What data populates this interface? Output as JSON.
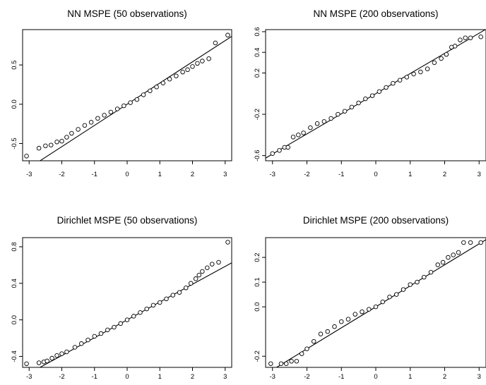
{
  "chart_data": [
    {
      "type": "scatter",
      "title": "NN MSPE (50 observations)",
      "xlabel": "",
      "ylabel": "",
      "xlim": [
        -3.2,
        3.2
      ],
      "ylim": [
        -0.72,
        0.95
      ],
      "x_ticks": [
        -3,
        -2,
        -1,
        0,
        1,
        2,
        3
      ],
      "x_tick_labels": [
        "-3",
        "-2",
        "-1",
        "0",
        "1",
        "2",
        "3"
      ],
      "y_ticks": [
        -0.5,
        0.0,
        0.5
      ],
      "y_tick_labels": [
        "-0.5",
        "0.0",
        "0.5"
      ],
      "reference_line": {
        "intercept": 0.0,
        "slope": 0.27
      },
      "series": [
        {
          "values_desc": "qq points",
          "points": [
            [
              -3.08,
              -0.66
            ],
            [
              -2.7,
              -0.56
            ],
            [
              -2.5,
              -0.53
            ],
            [
              -2.33,
              -0.52
            ],
            [
              -2.15,
              -0.48
            ],
            [
              -2.0,
              -0.47
            ],
            [
              -1.85,
              -0.42
            ],
            [
              -1.7,
              -0.37
            ],
            [
              -1.5,
              -0.32
            ],
            [
              -1.3,
              -0.27
            ],
            [
              -1.1,
              -0.23
            ],
            [
              -0.9,
              -0.18
            ],
            [
              -0.7,
              -0.14
            ],
            [
              -0.5,
              -0.1
            ],
            [
              -0.3,
              -0.06
            ],
            [
              -0.1,
              -0.02
            ],
            [
              0.1,
              0.02
            ],
            [
              0.3,
              0.06
            ],
            [
              0.5,
              0.12
            ],
            [
              0.7,
              0.17
            ],
            [
              0.9,
              0.22
            ],
            [
              1.1,
              0.27
            ],
            [
              1.3,
              0.32
            ],
            [
              1.5,
              0.36
            ],
            [
              1.7,
              0.41
            ],
            [
              1.85,
              0.44
            ],
            [
              2.0,
              0.48
            ],
            [
              2.15,
              0.52
            ],
            [
              2.3,
              0.55
            ],
            [
              2.5,
              0.58
            ],
            [
              2.7,
              0.78
            ],
            [
              3.08,
              0.88
            ]
          ]
        }
      ]
    },
    {
      "type": "scatter",
      "title": "NN MSPE (200 observations)",
      "xlabel": "",
      "ylabel": "",
      "xlim": [
        -3.2,
        3.2
      ],
      "ylim": [
        -0.65,
        0.62
      ],
      "x_ticks": [
        -3,
        -2,
        -1,
        0,
        1,
        2,
        3
      ],
      "x_tick_labels": [
        "-3",
        "-2",
        "-1",
        "0",
        "1",
        "2",
        "3"
      ],
      "y_ticks": [
        -0.6,
        -0.2,
        0.2,
        0.4,
        0.6
      ],
      "y_tick_labels": [
        "-0.6",
        "-0.2",
        "0.2",
        "0.4",
        "0.6"
      ],
      "reference_line": {
        "intercept": 0.0,
        "slope": 0.195
      },
      "series": [
        {
          "values_desc": "qq points",
          "points": [
            [
              -3.0,
              -0.58
            ],
            [
              -2.8,
              -0.55
            ],
            [
              -2.65,
              -0.52
            ],
            [
              -2.55,
              -0.52
            ],
            [
              -2.4,
              -0.42
            ],
            [
              -2.25,
              -0.4
            ],
            [
              -2.1,
              -0.38
            ],
            [
              -1.9,
              -0.33
            ],
            [
              -1.7,
              -0.29
            ],
            [
              -1.5,
              -0.27
            ],
            [
              -1.3,
              -0.24
            ],
            [
              -1.1,
              -0.2
            ],
            [
              -0.9,
              -0.17
            ],
            [
              -0.7,
              -0.13
            ],
            [
              -0.5,
              -0.09
            ],
            [
              -0.3,
              -0.05
            ],
            [
              -0.1,
              -0.02
            ],
            [
              0.1,
              0.02
            ],
            [
              0.3,
              0.06
            ],
            [
              0.5,
              0.1
            ],
            [
              0.7,
              0.13
            ],
            [
              0.9,
              0.16
            ],
            [
              1.1,
              0.19
            ],
            [
              1.3,
              0.21
            ],
            [
              1.5,
              0.24
            ],
            [
              1.7,
              0.3
            ],
            [
              1.9,
              0.34
            ],
            [
              2.05,
              0.38
            ],
            [
              2.2,
              0.45
            ],
            [
              2.3,
              0.46
            ],
            [
              2.45,
              0.52
            ],
            [
              2.6,
              0.54
            ],
            [
              2.75,
              0.54
            ],
            [
              3.05,
              0.55
            ]
          ]
        }
      ]
    },
    {
      "type": "scatter",
      "title": "Dirichlet MSPE (50 observations)",
      "xlabel": "",
      "ylabel": "",
      "xlim": [
        -3.2,
        3.2
      ],
      "ylim": [
        -0.52,
        0.9
      ],
      "x_ticks": [
        -3,
        -2,
        -1,
        0,
        1,
        2,
        3
      ],
      "x_tick_labels": [
        "-3",
        "-2",
        "-1",
        "0",
        "1",
        "2",
        "3"
      ],
      "y_ticks": [
        -0.4,
        0.0,
        0.4,
        0.8
      ],
      "y_tick_labels": [
        "-0.4",
        "0.0",
        "0.4",
        "0.8"
      ],
      "reference_line": {
        "intercept": 0.0,
        "slope": 0.195
      },
      "series": [
        {
          "values_desc": "qq points",
          "points": [
            [
              -3.08,
              -0.48
            ],
            [
              -2.7,
              -0.47
            ],
            [
              -2.55,
              -0.46
            ],
            [
              -2.45,
              -0.45
            ],
            [
              -2.3,
              -0.42
            ],
            [
              -2.15,
              -0.39
            ],
            [
              -2.0,
              -0.37
            ],
            [
              -1.85,
              -0.35
            ],
            [
              -1.6,
              -0.3
            ],
            [
              -1.4,
              -0.26
            ],
            [
              -1.2,
              -0.22
            ],
            [
              -1.0,
              -0.18
            ],
            [
              -0.8,
              -0.15
            ],
            [
              -0.6,
              -0.11
            ],
            [
              -0.4,
              -0.08
            ],
            [
              -0.2,
              -0.04
            ],
            [
              0.0,
              0.0
            ],
            [
              0.2,
              0.04
            ],
            [
              0.4,
              0.08
            ],
            [
              0.6,
              0.12
            ],
            [
              0.8,
              0.16
            ],
            [
              1.0,
              0.19
            ],
            [
              1.2,
              0.23
            ],
            [
              1.4,
              0.27
            ],
            [
              1.6,
              0.3
            ],
            [
              1.8,
              0.35
            ],
            [
              1.95,
              0.4
            ],
            [
              2.1,
              0.45
            ],
            [
              2.2,
              0.49
            ],
            [
              2.3,
              0.53
            ],
            [
              2.45,
              0.57
            ],
            [
              2.6,
              0.61
            ],
            [
              2.8,
              0.63
            ],
            [
              3.08,
              0.85
            ]
          ]
        }
      ]
    },
    {
      "type": "scatter",
      "title": "Dirichlet MSPE (200 observations)",
      "xlabel": "",
      "ylabel": "",
      "xlim": [
        -3.2,
        3.2
      ],
      "ylim": [
        -0.245,
        0.28
      ],
      "x_ticks": [
        -3,
        -2,
        -1,
        0,
        1,
        2,
        3
      ],
      "x_tick_labels": [
        "-3",
        "-2",
        "-1",
        "0",
        "1",
        "2",
        "3"
      ],
      "y_ticks": [
        -0.2,
        0.0,
        0.1,
        0.2
      ],
      "y_tick_labels": [
        "-0.2",
        "0.0",
        "0.1",
        "0.2"
      ],
      "reference_line": {
        "intercept": 0.0,
        "slope": 0.085
      },
      "series": [
        {
          "values_desc": "qq points",
          "points": [
            [
              -3.05,
              -0.23
            ],
            [
              -2.75,
              -0.23
            ],
            [
              -2.6,
              -0.23
            ],
            [
              -2.45,
              -0.22
            ],
            [
              -2.3,
              -0.22
            ],
            [
              -2.15,
              -0.19
            ],
            [
              -2.0,
              -0.17
            ],
            [
              -1.8,
              -0.14
            ],
            [
              -1.6,
              -0.11
            ],
            [
              -1.4,
              -0.1
            ],
            [
              -1.2,
              -0.08
            ],
            [
              -1.0,
              -0.06
            ],
            [
              -0.8,
              -0.05
            ],
            [
              -0.6,
              -0.03
            ],
            [
              -0.4,
              -0.02
            ],
            [
              -0.2,
              -0.01
            ],
            [
              0.0,
              0.0
            ],
            [
              0.2,
              0.02
            ],
            [
              0.4,
              0.04
            ],
            [
              0.6,
              0.05
            ],
            [
              0.8,
              0.07
            ],
            [
              1.0,
              0.09
            ],
            [
              1.2,
              0.1
            ],
            [
              1.4,
              0.12
            ],
            [
              1.6,
              0.14
            ],
            [
              1.8,
              0.17
            ],
            [
              1.95,
              0.18
            ],
            [
              2.1,
              0.2
            ],
            [
              2.25,
              0.21
            ],
            [
              2.4,
              0.22
            ],
            [
              2.55,
              0.26
            ],
            [
              2.75,
              0.26
            ],
            [
              3.05,
              0.26
            ]
          ]
        }
      ]
    }
  ]
}
